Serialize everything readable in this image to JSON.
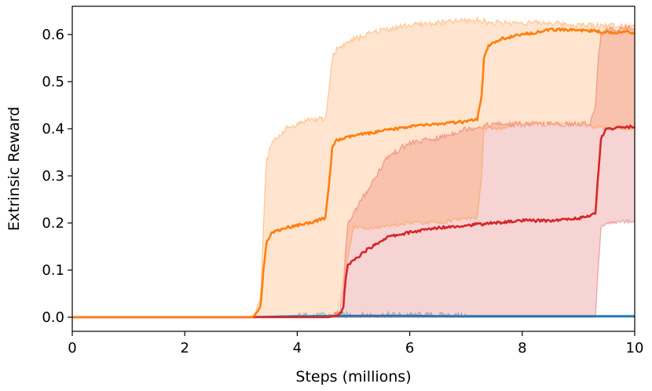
{
  "chart_data": {
    "type": "line",
    "title": "",
    "xlabel": "Steps (millions)",
    "ylabel": "Extrinsic Reward",
    "xlim": [
      0,
      10
    ],
    "ylim": [
      -0.03,
      0.66
    ],
    "xticks": [
      0,
      2,
      4,
      6,
      8,
      10
    ],
    "xtick_labels": [
      "0",
      "2",
      "4",
      "6",
      "8",
      "10"
    ],
    "yticks": [
      0.0,
      0.1,
      0.2,
      0.3,
      0.4,
      0.5,
      0.6
    ],
    "ytick_labels": [
      "0.0",
      "0.1",
      "0.2",
      "0.3",
      "0.4",
      "0.5",
      "0.6"
    ],
    "grid": false,
    "legend": "none",
    "series": [
      {
        "color": "#1f77b4",
        "x": [
          0,
          3.0,
          4.0,
          5.0,
          6.0,
          7.0,
          8.0,
          9.0,
          10.0
        ],
        "mean": [
          0.0,
          0.0,
          0.002,
          0.003,
          0.003,
          0.002,
          0.002,
          0.002,
          0.002
        ],
        "lower": [
          0.0,
          0.0,
          0.0,
          0.0,
          0.0,
          0.0,
          0.0,
          0.0,
          0.0
        ],
        "upper": [
          0.0,
          0.0,
          0.004,
          0.005,
          0.005,
          0.004,
          0.004,
          0.004,
          0.004
        ]
      },
      {
        "color": "#d62728",
        "x": [
          0,
          4.55,
          4.75,
          4.82,
          4.85,
          4.9,
          5.2,
          5.6,
          6.0,
          6.5,
          7.0,
          7.5,
          8.0,
          8.5,
          9.0,
          9.2,
          9.3,
          9.35,
          9.4,
          9.5,
          10.0
        ],
        "mean": [
          0.0,
          0.0,
          0.005,
          0.02,
          0.07,
          0.11,
          0.14,
          0.17,
          0.18,
          0.19,
          0.195,
          0.2,
          0.205,
          0.205,
          0.21,
          0.215,
          0.22,
          0.3,
          0.38,
          0.4,
          0.405
        ],
        "lower": [
          0.0,
          0.0,
          0.0,
          0.0,
          0.0,
          0.0,
          0.0,
          0.0,
          0.0,
          0.0,
          0.0,
          0.0,
          0.0,
          0.0,
          0.0,
          0.0,
          0.0,
          0.1,
          0.19,
          0.2,
          0.205
        ],
        "upper": [
          0.0,
          0.0,
          0.01,
          0.06,
          0.13,
          0.2,
          0.26,
          0.34,
          0.37,
          0.38,
          0.4,
          0.41,
          0.41,
          0.41,
          0.41,
          0.41,
          0.45,
          0.55,
          0.6,
          0.61,
          0.615
        ]
      },
      {
        "color": "#ff7f0e",
        "x": [
          0,
          3.2,
          3.35,
          3.4,
          3.45,
          3.55,
          3.8,
          4.2,
          4.5,
          4.58,
          4.62,
          4.7,
          5.0,
          5.5,
          6.0,
          6.5,
          7.0,
          7.2,
          7.28,
          7.32,
          7.4,
          7.6,
          8.0,
          8.5,
          9.0,
          9.5,
          10.0
        ],
        "mean": [
          0.0,
          0.0,
          0.02,
          0.1,
          0.16,
          0.18,
          0.19,
          0.2,
          0.21,
          0.3,
          0.36,
          0.375,
          0.385,
          0.395,
          0.405,
          0.41,
          0.415,
          0.42,
          0.47,
          0.55,
          0.575,
          0.59,
          0.6,
          0.61,
          0.61,
          0.605,
          0.605
        ],
        "lower": [
          0.0,
          0.0,
          0.0,
          0.0,
          0.0,
          0.0,
          0.0,
          0.0,
          0.0,
          0.0,
          0.0,
          0.0,
          0.19,
          0.19,
          0.2,
          0.2,
          0.21,
          0.21,
          0.3,
          0.4,
          0.4,
          0.4,
          0.41,
          0.41,
          0.41,
          0.4,
          0.4
        ],
        "upper": [
          0.0,
          0.0,
          0.04,
          0.2,
          0.33,
          0.37,
          0.4,
          0.42,
          0.42,
          0.5,
          0.55,
          0.57,
          0.59,
          0.61,
          0.62,
          0.625,
          0.63,
          0.63,
          0.63,
          0.63,
          0.625,
          0.625,
          0.625,
          0.625,
          0.62,
          0.62,
          0.62
        ]
      }
    ]
  }
}
